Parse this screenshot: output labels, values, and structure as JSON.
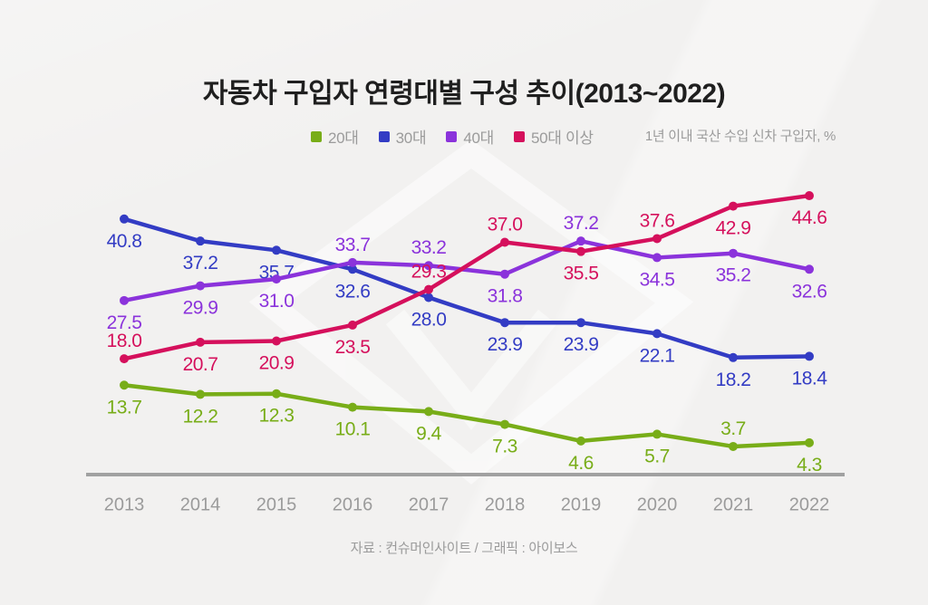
{
  "title": "자동차 구입자 연령대별 구성 추이(2013~2022)",
  "unit_note": "1년 이내 국산 수입 신차 구입자, %",
  "footer": "자료 : 컨슈머인사이트 / 그래픽 : 아이보스",
  "colors": {
    "background": "#f2f1f0",
    "title_text": "#1f1f1f",
    "muted_text": "#9b9b9b",
    "axis_line": "#a1a1a1",
    "watermark": "#ffffff"
  },
  "chart_data": {
    "type": "line",
    "title": "자동차 구입자 연령대별 구성 추이(2013~2022)",
    "subtitle": "1년 이내 국산 수입 신차 구입자, %",
    "categories": [
      "2013",
      "2014",
      "2015",
      "2016",
      "2017",
      "2018",
      "2019",
      "2020",
      "2021",
      "2022"
    ],
    "series": [
      {
        "name": "20대",
        "color": "#78ad18",
        "values": [
          13.7,
          12.2,
          12.3,
          10.1,
          9.4,
          7.3,
          4.6,
          5.7,
          3.7,
          4.3
        ],
        "label_pos": [
          "b",
          "b",
          "b",
          "b",
          "b",
          "b",
          "b",
          "b",
          "a",
          "b"
        ]
      },
      {
        "name": "30대",
        "color": "#333cc4",
        "values": [
          40.8,
          37.2,
          35.7,
          32.6,
          28.0,
          23.9,
          23.9,
          22.1,
          18.2,
          18.4
        ],
        "label_pos": [
          "b",
          "b",
          "b",
          "b",
          "b",
          "b",
          "b",
          "b",
          "b",
          "b"
        ]
      },
      {
        "name": "40대",
        "color": "#8b33db",
        "values": [
          27.5,
          29.9,
          31.0,
          33.7,
          33.2,
          31.8,
          37.2,
          34.5,
          35.2,
          32.6
        ],
        "label_pos": [
          "b",
          "b",
          "b",
          "a",
          "a",
          "b",
          "a",
          "b",
          "b",
          "b"
        ]
      },
      {
        "name": "50대 이상",
        "color": "#d5105c",
        "values": [
          18.0,
          20.7,
          20.9,
          23.5,
          29.3,
          37.0,
          35.5,
          37.6,
          42.9,
          44.6
        ],
        "label_pos": [
          "a",
          "b",
          "b",
          "b",
          "a",
          "a",
          "b",
          "a",
          "b",
          "b"
        ]
      }
    ],
    "ylim": [
      0,
      50
    ],
    "xlabel": "",
    "ylabel": "",
    "grid": false,
    "legend_position": "top",
    "data_labels": true
  }
}
